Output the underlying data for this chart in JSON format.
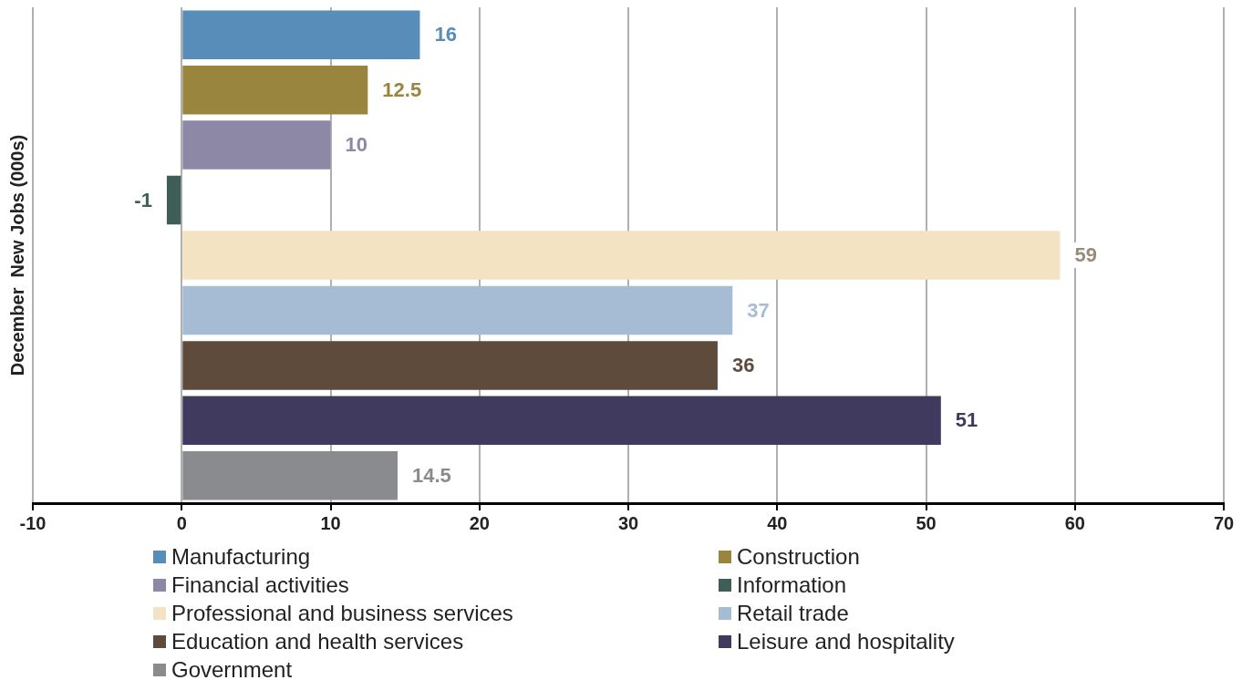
{
  "chart_data": {
    "type": "bar",
    "orientation": "horizontal",
    "ylabel": "December  New Jobs (000s)",
    "categories": [
      null
    ],
    "series": [
      {
        "name": "Manufacturing",
        "color": "#588cb9",
        "values": [
          16
        ]
      },
      {
        "name": "Construction",
        "color": "#9a853f",
        "values": [
          12.5
        ]
      },
      {
        "name": "Financial activities",
        "color": "#8e88a7",
        "values": [
          10
        ]
      },
      {
        "name": "Information",
        "color": "#3e5e57",
        "values": [
          -1
        ]
      },
      {
        "name": "Professional and business services",
        "color": "#f3e3c2",
        "values": [
          59
        ]
      },
      {
        "name": "Retail trade",
        "color": "#a6bcd5",
        "values": [
          37
        ]
      },
      {
        "name": "Education and health services",
        "color": "#5f4b3c",
        "values": [
          36
        ]
      },
      {
        "name": "Leisure and hospitality",
        "color": "#413a5f",
        "values": [
          51
        ]
      },
      {
        "name": "Government",
        "color": "#8a8b8e",
        "values": [
          14.5
        ]
      }
    ],
    "xlim": [
      -10,
      70
    ],
    "xticks": [
      -10,
      0,
      10,
      20,
      30,
      40,
      50,
      60,
      70
    ],
    "grid": "x",
    "data_labels": true,
    "legend": "bottom"
  }
}
